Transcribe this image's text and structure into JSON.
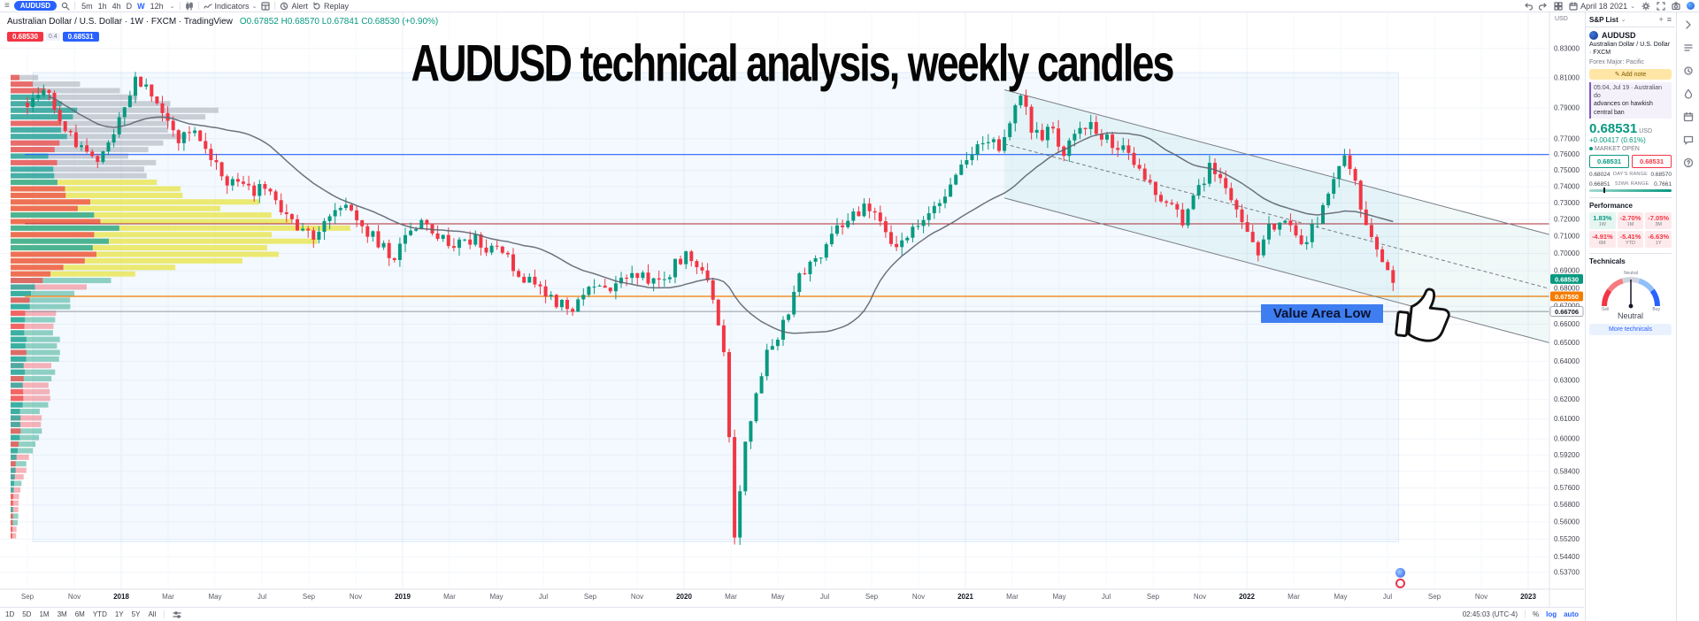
{
  "top_toolbar": {
    "symbol": "AUDUSD",
    "timeframes": [
      "5m",
      "1h",
      "4h",
      "D",
      "W",
      "12h"
    ],
    "active_timeframe": "W",
    "indicators_label": "Indicators",
    "alert_label": "Alert",
    "replay_label": "Replay",
    "date": "April 18 2021"
  },
  "legend": {
    "title": "Australian Dollar / U.S. Dollar · 1W · FXCM · TradingView",
    "ohlc": "O0.67852  H0.68570  L0.67841  C0.68530  (+0.90%)",
    "sell": "0.68530",
    "spread": "0.4",
    "buy": "0.68531"
  },
  "overlay": {
    "headline": "AUDUSD technical analysis, weekly candles",
    "value_area_label": "Value Area Low"
  },
  "chart_data": {
    "type": "candlestick",
    "symbol": "AUDUSD",
    "timeframe": "1W",
    "scale": "log",
    "axis_currency": "USD",
    "title": "AUDUSD technical analysis, weekly candles",
    "x_labels": [
      "Sep",
      "Nov",
      "2018",
      "Mar",
      "May",
      "Jul",
      "Sep",
      "Nov",
      "2019",
      "Mar",
      "May",
      "Jul",
      "Sep",
      "Nov",
      "2020",
      "Mar",
      "May",
      "Jul",
      "Sep",
      "Nov",
      "2021",
      "Mar",
      "May",
      "Jul",
      "Sep",
      "Nov",
      "2022",
      "Mar",
      "May",
      "Jul",
      "Sep",
      "Nov",
      "2023"
    ],
    "y_ticks": [
      0.83,
      0.81,
      0.79,
      0.77,
      0.76,
      0.75,
      0.74,
      0.73,
      0.72,
      0.71,
      0.7,
      0.69,
      0.68,
      0.67,
      0.66,
      0.65,
      0.64,
      0.63,
      0.62,
      0.61,
      0.6,
      0.592,
      0.584,
      0.576,
      0.568,
      0.56,
      0.552,
      0.544,
      0.537
    ],
    "price_anchors": [
      [
        0,
        0.795
      ],
      [
        3,
        0.806
      ],
      [
        6,
        0.782
      ],
      [
        9,
        0.766
      ],
      [
        13,
        0.757
      ],
      [
        16,
        0.772
      ],
      [
        18,
        0.788
      ],
      [
        20,
        0.812
      ],
      [
        22,
        0.803
      ],
      [
        24,
        0.791
      ],
      [
        26,
        0.781
      ],
      [
        28,
        0.768
      ],
      [
        31,
        0.776
      ],
      [
        34,
        0.758
      ],
      [
        37,
        0.744
      ],
      [
        41,
        0.737
      ],
      [
        44,
        0.741
      ],
      [
        47,
        0.726
      ],
      [
        50,
        0.716
      ],
      [
        53,
        0.707
      ],
      [
        56,
        0.722
      ],
      [
        59,
        0.729
      ],
      [
        61,
        0.72
      ],
      [
        64,
        0.71
      ],
      [
        68,
        0.698
      ],
      [
        70,
        0.712
      ],
      [
        73,
        0.716
      ],
      [
        76,
        0.711
      ],
      [
        79,
        0.702
      ],
      [
        82,
        0.709
      ],
      [
        85,
        0.704
      ],
      [
        88,
        0.699
      ],
      [
        91,
        0.689
      ],
      [
        94,
        0.68
      ],
      [
        98,
        0.672
      ],
      [
        101,
        0.67
      ],
      [
        104,
        0.682
      ],
      [
        107,
        0.678
      ],
      [
        110,
        0.684
      ],
      [
        113,
        0.689
      ],
      [
        116,
        0.683
      ],
      [
        119,
        0.69
      ],
      [
        122,
        0.7
      ],
      [
        125,
        0.692
      ],
      [
        127,
        0.675
      ],
      [
        129,
        0.645
      ],
      [
        131,
        0.551
      ],
      [
        133,
        0.6
      ],
      [
        135,
        0.622
      ],
      [
        137,
        0.643
      ],
      [
        140,
        0.66
      ],
      [
        143,
        0.686
      ],
      [
        146,
        0.697
      ],
      [
        149,
        0.71
      ],
      [
        152,
        0.72
      ],
      [
        155,
        0.729
      ],
      [
        157,
        0.724
      ],
      [
        160,
        0.705
      ],
      [
        163,
        0.712
      ],
      [
        166,
        0.722
      ],
      [
        169,
        0.733
      ],
      [
        172,
        0.746
      ],
      [
        175,
        0.762
      ],
      [
        178,
        0.772
      ],
      [
        180,
        0.766
      ],
      [
        182,
        0.778
      ],
      [
        184,
        0.8
      ],
      [
        186,
        0.778
      ],
      [
        188,
        0.772
      ],
      [
        190,
        0.775
      ],
      [
        192,
        0.76
      ],
      [
        195,
        0.78
      ],
      [
        198,
        0.776
      ],
      [
        200,
        0.771
      ],
      [
        203,
        0.762
      ],
      [
        206,
        0.749
      ],
      [
        209,
        0.735
      ],
      [
        212,
        0.726
      ],
      [
        214,
        0.72
      ],
      [
        217,
        0.74
      ],
      [
        219,
        0.751
      ],
      [
        222,
        0.74
      ],
      [
        225,
        0.716
      ],
      [
        228,
        0.701
      ],
      [
        230,
        0.714
      ],
      [
        233,
        0.719
      ],
      [
        236,
        0.706
      ],
      [
        238,
        0.715
      ],
      [
        240,
        0.726
      ],
      [
        242,
        0.744
      ],
      [
        244,
        0.757
      ],
      [
        246,
        0.741
      ],
      [
        248,
        0.716
      ],
      [
        250,
        0.699
      ],
      [
        252,
        0.689
      ],
      [
        253,
        0.6853
      ]
    ],
    "current_price": 0.6853,
    "price_tags": [
      {
        "text": "0.68530",
        "price": 0.6853,
        "color": "#089981",
        "text_color": "#ffffff"
      },
      {
        "text": "0.67550",
        "price": 0.6755,
        "color": "#f57c00",
        "text_color": "#ffffff"
      },
      {
        "text": "0.66706",
        "price": 0.66706,
        "color": "#ffffff",
        "text_color": "#131722"
      }
    ],
    "h_lines": [
      {
        "price": 0.76,
        "color": "#2962ff",
        "w": 1.2
      },
      {
        "price": 0.7175,
        "color": "#b22833",
        "w": 1
      },
      {
        "price": 0.6755,
        "color": "#f57c00",
        "w": 1.2
      },
      {
        "price": 0.66706,
        "color": "#9598a1",
        "w": 1
      }
    ],
    "channel": {
      "w1": 181,
      "p1": 0.802,
      "w2": 288,
      "p2": 0.706,
      "lower_ratio": 0.914
    },
    "highlight_region": {
      "w_start": 1,
      "w_end": 254,
      "p_top": 0.8136,
      "p_bottom": 0.5509
    },
    "volume_profile": {
      "value_area": [
        0.6875,
        0.7465
      ],
      "points": [
        [
          0.552,
          6
        ],
        [
          0.562,
          8
        ],
        [
          0.572,
          10
        ],
        [
          0.582,
          14
        ],
        [
          0.592,
          18
        ],
        [
          0.602,
          30
        ],
        [
          0.612,
          38
        ],
        [
          0.622,
          40
        ],
        [
          0.632,
          45
        ],
        [
          0.642,
          55
        ],
        [
          0.652,
          48
        ],
        [
          0.662,
          55
        ],
        [
          0.672,
          60
        ],
        [
          0.682,
          80
        ],
        [
          0.69,
          150
        ],
        [
          0.698,
          250
        ],
        [
          0.707,
          320
        ],
        [
          0.717,
          350
        ],
        [
          0.727,
          280
        ],
        [
          0.737,
          215
        ],
        [
          0.747,
          140
        ],
        [
          0.754,
          168
        ],
        [
          0.762,
          120
        ],
        [
          0.77,
          180
        ],
        [
          0.78,
          190
        ],
        [
          0.79,
          208
        ],
        [
          0.8,
          150
        ],
        [
          0.812,
          35
        ]
      ]
    }
  },
  "bottom_toolbar": {
    "ranges": [
      "1D",
      "5D",
      "1M",
      "3M",
      "6M",
      "YTD",
      "1Y",
      "5Y",
      "All"
    ],
    "clock": "02:45:03 (UTC-4)",
    "percent_label": "%",
    "log_label": "log",
    "auto_label": "auto"
  },
  "watchlist": {
    "header": "S&P List",
    "symbol": "AUDUSD",
    "description": "Australian Dollar / U.S. Dollar · FXCM",
    "market": "Forex Major: Pacific",
    "add_note": "Add note",
    "news_time": "05:04, Jul 19 · Australian do",
    "news_text": "advances on hawkish central ban",
    "price": "0.68531",
    "currency": "USD",
    "change": "+0.00417 (0.61%)",
    "market_status": "MARKET OPEN",
    "sell": "0.68531",
    "buy": "0.68531",
    "day_range": {
      "low": "0.68024",
      "label": "DAY'S RANGE",
      "high": "0.68570"
    },
    "wk52_range": {
      "low": "0.66851",
      "label": "52WK RANGE",
      "high": "0.7661"
    },
    "performance_title": "Performance",
    "performance": [
      {
        "value": "1.83%",
        "label": "1W",
        "dir": "up"
      },
      {
        "value": "-2.70%",
        "label": "1M",
        "dir": "down"
      },
      {
        "value": "-7.05%",
        "label": "3M",
        "dir": "down"
      },
      {
        "value": "-4.91%",
        "label": "6M",
        "dir": "down"
      },
      {
        "value": "-5.41%",
        "label": "YTD",
        "dir": "down"
      },
      {
        "value": "-6.63%",
        "label": "1Y",
        "dir": "down"
      }
    ],
    "technicals_title": "Technicals",
    "gauge_ticks": [
      "Sell",
      "Neutral",
      "Buy"
    ],
    "gauge_label": "Neutral",
    "more_technicals": "More technicals"
  },
  "colors": {
    "up": "#089981",
    "down": "#f23645",
    "accent": "#2962ff",
    "profile_gray": "#9ea3ad",
    "profile_yellow": "#e9e658",
    "ma_line": "#5d646f"
  }
}
